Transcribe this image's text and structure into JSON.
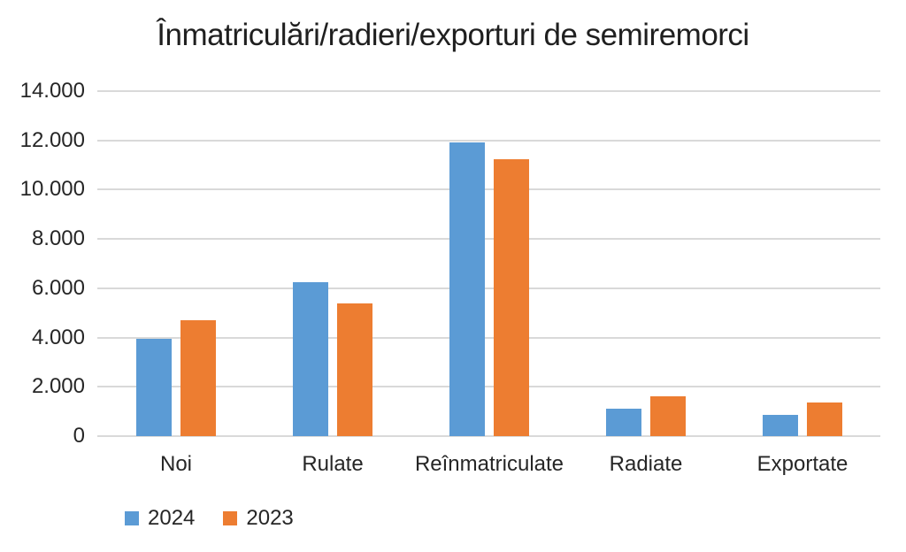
{
  "chart_data": {
    "type": "bar",
    "title": "Înmatriculări/radieri/exporturi de semiremorci",
    "categories": [
      "Noi",
      "Rulate",
      "Reînmatriculate",
      "Radiate",
      "Exportate"
    ],
    "series": [
      {
        "name": "2024",
        "color": "#5B9BD5",
        "values": [
          3950,
          6250,
          11930,
          1100,
          850
        ]
      },
      {
        "name": "2023",
        "color": "#ED7D31",
        "values": [
          4720,
          5400,
          11230,
          1630,
          1350
        ]
      }
    ],
    "xlabel": "",
    "ylabel": "",
    "ylim": [
      0,
      14000
    ],
    "yticks": [
      {
        "label": "0",
        "value": 0
      },
      {
        "label": "2.000",
        "value": 2000
      },
      {
        "label": "4.000",
        "value": 4000
      },
      {
        "label": "6.000",
        "value": 6000
      },
      {
        "label": "8.000",
        "value": 8000
      },
      {
        "label": "10.000",
        "value": 10000
      },
      {
        "label": "12.000",
        "value": 12000
      },
      {
        "label": "14.000",
        "value": 14000
      }
    ],
    "grid": true,
    "legend_position": "bottom-left",
    "colors": {
      "background": "#FFFFFF",
      "gridline": "#D9D9D9",
      "text": "#262626",
      "title_text": "#1F1F1F"
    }
  }
}
